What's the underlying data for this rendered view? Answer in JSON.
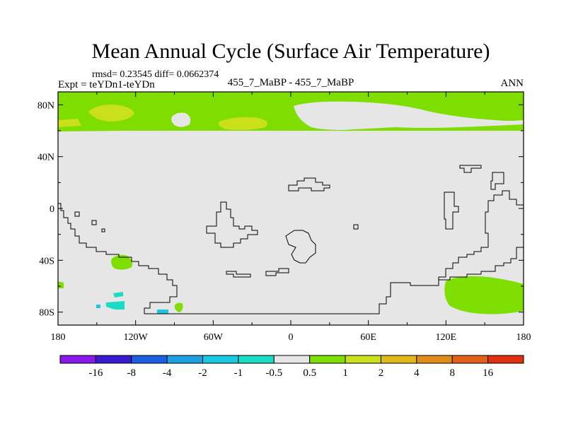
{
  "chart_data": {
    "type": "heatmap",
    "title": "Mean Annual Cycle (Surface Air Temperature)",
    "stats": "rmsd= 0.23545 diff= 0.0662374",
    "experiment": "Expt = teYDn1-teYDn",
    "center_label": "455_7_MaBP - 455_7_MaBP",
    "season": "ANN",
    "xlim": [
      -180,
      180
    ],
    "ylim": [
      -90,
      90
    ],
    "x_ticks": [
      {
        "value": -180,
        "label": "180"
      },
      {
        "value": -120,
        "label": "120W"
      },
      {
        "value": -60,
        "label": "60W"
      },
      {
        "value": 0,
        "label": "0"
      },
      {
        "value": 60,
        "label": "60E"
      },
      {
        "value": 120,
        "label": "120E"
      },
      {
        "value": 180,
        "label": "180"
      }
    ],
    "y_ticks": [
      {
        "value": 80,
        "label": "80N"
      },
      {
        "value": 40,
        "label": "40N"
      },
      {
        "value": 0,
        "label": "0"
      },
      {
        "value": -40,
        "label": "40S"
      },
      {
        "value": -80,
        "label": "80S"
      }
    ],
    "colorbar": {
      "colors": [
        "#8a18e8",
        "#3a1ad0",
        "#1a5fe0",
        "#1f9ee0",
        "#19c8e0",
        "#19dcc4",
        "#e6e6e6",
        "#7ede00",
        "#c9e01a",
        "#e0b81a",
        "#e08c1a",
        "#e06019",
        "#e0300f"
      ],
      "labels": [
        "-16",
        "-8",
        "-4",
        "-2",
        "-1",
        "-0.5",
        "0.5",
        "1",
        "2",
        "4",
        "8",
        "16"
      ]
    },
    "fields": {
      "background": "#e6e6e6",
      "positive_weak": "#7ede00",
      "positive_mid": "#c9e01a",
      "negative_weak": "#19dcc4"
    }
  }
}
